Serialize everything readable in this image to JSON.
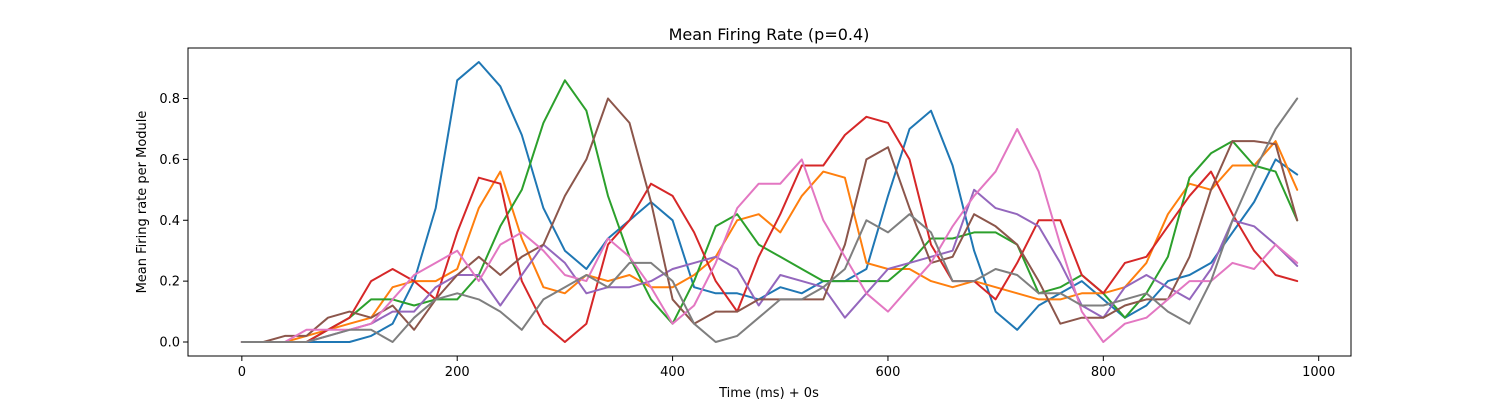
{
  "chart_data": {
    "type": "line",
    "title": "Mean Firing Rate (p=0.4)",
    "xlabel": "Time (ms) + 0s",
    "ylabel": "Mean Firing rate per Module",
    "xlim": [
      -50,
      1030
    ],
    "ylim": [
      -0.046,
      0.966
    ],
    "xticks": [
      0,
      200,
      400,
      600,
      800,
      1000
    ],
    "xtick_labels": [
      "0",
      "200",
      "400",
      "600",
      "800",
      "1000"
    ],
    "yticks": [
      0.0,
      0.2,
      0.4,
      0.6,
      0.8
    ],
    "ytick_labels": [
      "0.0",
      "0.2",
      "0.4",
      "0.6",
      "0.8"
    ],
    "grid": false,
    "x": [
      0,
      20,
      40,
      60,
      80,
      100,
      120,
      140,
      160,
      180,
      200,
      220,
      240,
      260,
      280,
      300,
      320,
      340,
      360,
      380,
      400,
      420,
      440,
      460,
      480,
      500,
      520,
      540,
      560,
      580,
      600,
      620,
      640,
      660,
      680,
      700,
      720,
      740,
      760,
      780,
      800,
      820,
      840,
      860,
      880,
      900,
      920,
      940,
      960,
      980
    ],
    "series": [
      {
        "color": "#1f77b4",
        "values": [
          0,
          0,
          0,
          0,
          0,
          0,
          0.02,
          0.06,
          0.2,
          0.44,
          0.86,
          0.92,
          0.84,
          0.68,
          0.44,
          0.3,
          0.24,
          0.34,
          0.4,
          0.46,
          0.4,
          0.18,
          0.16,
          0.16,
          0.14,
          0.18,
          0.16,
          0.2,
          0.2,
          0.24,
          0.48,
          0.7,
          0.76,
          0.58,
          0.3,
          0.1,
          0.04,
          0.12,
          0.16,
          0.2,
          0.14,
          0.08,
          0.12,
          0.2,
          0.22,
          0.26,
          0.36,
          0.46,
          0.6,
          0.55
        ]
      },
      {
        "color": "#ff7f0e",
        "values": [
          0,
          0,
          0,
          0.02,
          0.04,
          0.06,
          0.08,
          0.18,
          0.2,
          0.2,
          0.24,
          0.44,
          0.56,
          0.34,
          0.18,
          0.16,
          0.22,
          0.2,
          0.22,
          0.18,
          0.18,
          0.22,
          0.28,
          0.4,
          0.42,
          0.36,
          0.48,
          0.56,
          0.54,
          0.26,
          0.24,
          0.24,
          0.2,
          0.18,
          0.2,
          0.18,
          0.16,
          0.14,
          0.14,
          0.16,
          0.16,
          0.18,
          0.26,
          0.42,
          0.52,
          0.5,
          0.58,
          0.58,
          0.66,
          0.5
        ]
      },
      {
        "color": "#2ca02c",
        "values": [
          0,
          0,
          0,
          0,
          0.04,
          0.08,
          0.14,
          0.14,
          0.12,
          0.14,
          0.14,
          0.22,
          0.38,
          0.5,
          0.72,
          0.86,
          0.76,
          0.48,
          0.28,
          0.14,
          0.06,
          0.2,
          0.38,
          0.42,
          0.32,
          0.28,
          0.24,
          0.2,
          0.2,
          0.2,
          0.2,
          0.26,
          0.34,
          0.34,
          0.36,
          0.36,
          0.32,
          0.16,
          0.18,
          0.22,
          0.16,
          0.08,
          0.16,
          0.28,
          0.54,
          0.62,
          0.66,
          0.58,
          0.56,
          0.4
        ]
      },
      {
        "color": "#d62728",
        "values": [
          0,
          0,
          0,
          0,
          0.04,
          0.08,
          0.2,
          0.24,
          0.2,
          0.14,
          0.36,
          0.54,
          0.52,
          0.2,
          0.06,
          0,
          0.06,
          0.32,
          0.4,
          0.52,
          0.48,
          0.36,
          0.2,
          0.1,
          0.28,
          0.42,
          0.58,
          0.58,
          0.68,
          0.74,
          0.72,
          0.6,
          0.32,
          0.2,
          0.2,
          0.14,
          0.26,
          0.4,
          0.4,
          0.22,
          0.16,
          0.26,
          0.28,
          0.38,
          0.48,
          0.56,
          0.42,
          0.3,
          0.22,
          0.2
        ]
      },
      {
        "color": "#9467bd",
        "values": [
          0,
          0,
          0,
          0,
          0.02,
          0.04,
          0.06,
          0.1,
          0.1,
          0.18,
          0.22,
          0.22,
          0.12,
          0.22,
          0.32,
          0.26,
          0.16,
          0.18,
          0.18,
          0.2,
          0.24,
          0.26,
          0.28,
          0.24,
          0.12,
          0.22,
          0.2,
          0.18,
          0.08,
          0.16,
          0.24,
          0.26,
          0.28,
          0.3,
          0.5,
          0.44,
          0.42,
          0.38,
          0.26,
          0.12,
          0.08,
          0.18,
          0.22,
          0.18,
          0.14,
          0.24,
          0.4,
          0.38,
          0.32,
          0.25
        ]
      },
      {
        "color": "#8c564b",
        "values": [
          0,
          0,
          0.02,
          0.02,
          0.08,
          0.1,
          0.08,
          0.12,
          0.04,
          0.14,
          0.22,
          0.28,
          0.22,
          0.28,
          0.32,
          0.48,
          0.6,
          0.8,
          0.72,
          0.46,
          0.14,
          0.06,
          0.1,
          0.1,
          0.14,
          0.14,
          0.14,
          0.14,
          0.32,
          0.6,
          0.64,
          0.44,
          0.26,
          0.28,
          0.42,
          0.38,
          0.32,
          0.2,
          0.06,
          0.08,
          0.08,
          0.12,
          0.14,
          0.14,
          0.28,
          0.5,
          0.66,
          0.66,
          0.65,
          0.4
        ]
      },
      {
        "color": "#e377c2",
        "values": [
          0,
          0,
          0,
          0.04,
          0.04,
          0.04,
          0.06,
          0.14,
          0.22,
          0.26,
          0.3,
          0.2,
          0.32,
          0.36,
          0.3,
          0.22,
          0.2,
          0.34,
          0.28,
          0.18,
          0.06,
          0.12,
          0.26,
          0.44,
          0.52,
          0.52,
          0.6,
          0.4,
          0.28,
          0.16,
          0.1,
          0.18,
          0.26,
          0.38,
          0.48,
          0.56,
          0.7,
          0.56,
          0.32,
          0.1,
          0,
          0.06,
          0.08,
          0.14,
          0.2,
          0.2,
          0.26,
          0.24,
          0.32,
          0.26
        ]
      },
      {
        "color": "#7f7f7f",
        "values": [
          0,
          0,
          0,
          0,
          0.02,
          0.04,
          0.04,
          0,
          0.08,
          0.14,
          0.16,
          0.14,
          0.1,
          0.04,
          0.14,
          0.18,
          0.22,
          0.18,
          0.26,
          0.26,
          0.2,
          0.06,
          0,
          0.02,
          0.08,
          0.14,
          0.14,
          0.18,
          0.24,
          0.4,
          0.36,
          0.42,
          0.36,
          0.2,
          0.2,
          0.24,
          0.22,
          0.16,
          0.16,
          0.12,
          0.12,
          0.14,
          0.16,
          0.1,
          0.06,
          0.2,
          0.4,
          0.56,
          0.7,
          0.8
        ]
      }
    ]
  }
}
